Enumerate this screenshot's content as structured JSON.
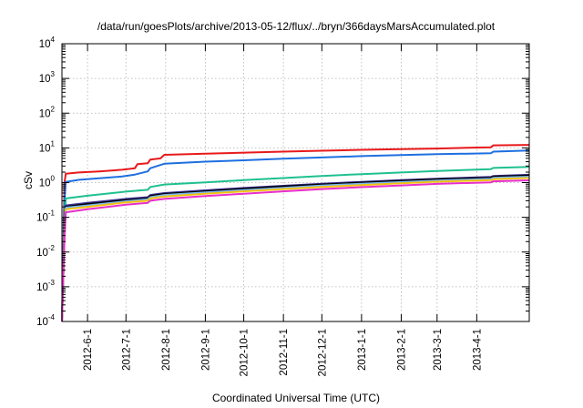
{
  "chart_data": {
    "type": "line",
    "title": "/data/run/goesPlots/archive/2013-05-12/flux/../bryn/366daysMarsAccumulated.plot",
    "xlabel": "Coordinated Universal Time (UTC)",
    "ylabel": "cSv",
    "x_range": [
      "2012-05-12",
      "2013-05-12"
    ],
    "ylim": [
      0.0001,
      10000
    ],
    "yscale": "log",
    "grid": true,
    "x_ticks": [
      "2012-06-01",
      "2012-07-01",
      "2012-08-01",
      "2012-09-01",
      "2012-10-01",
      "2012-11-01",
      "2012-12-01",
      "2013-01-01",
      "2013-02-01",
      "2013-03-01",
      "2013-04-01"
    ],
    "x_tick_labels": [
      "2012-6-1",
      "2012-7-1",
      "2012-8-1",
      "2012-9-1",
      "2012-10-1",
      "2012-11-1",
      "2012-12-1",
      "2013-1-1",
      "2013-2-1",
      "2013-3-1",
      "2013-4-1"
    ],
    "y_ticks": [
      {
        "value": 0.0001,
        "base": "10",
        "exp": "-4"
      },
      {
        "value": 0.001,
        "base": "10",
        "exp": "-3"
      },
      {
        "value": 0.01,
        "base": "10",
        "exp": "-2"
      },
      {
        "value": 0.1,
        "base": "10",
        "exp": "-1"
      },
      {
        "value": 1,
        "base": "10",
        "exp": "0"
      },
      {
        "value": 10,
        "base": "10",
        "exp": "1"
      },
      {
        "value": 100,
        "base": "10",
        "exp": "2"
      },
      {
        "value": 1000,
        "base": "10",
        "exp": "3"
      },
      {
        "value": 10000,
        "base": "10",
        "exp": "4"
      }
    ],
    "series": [
      {
        "color": "#e8191b",
        "points": [
          [
            "2012-05-12",
            0.0001
          ],
          [
            "2012-05-13",
            0.01
          ],
          [
            "2012-05-14",
            1.0
          ],
          [
            "2012-05-15",
            1.8
          ],
          [
            "2012-05-25",
            1.95
          ],
          [
            "2012-06-10",
            2.1
          ],
          [
            "2012-06-28",
            2.35
          ],
          [
            "2012-07-08",
            2.6
          ],
          [
            "2012-07-10",
            3.4
          ],
          [
            "2012-07-18",
            3.6
          ],
          [
            "2012-07-20",
            4.6
          ],
          [
            "2012-07-28",
            5.0
          ],
          [
            "2012-07-31",
            6.3
          ],
          [
            "2012-09-01",
            6.8
          ],
          [
            "2012-10-01",
            7.3
          ],
          [
            "2012-11-01",
            7.8
          ],
          [
            "2012-12-01",
            8.3
          ],
          [
            "2013-01-01",
            8.8
          ],
          [
            "2013-02-01",
            9.2
          ],
          [
            "2013-03-01",
            9.6
          ],
          [
            "2013-04-12",
            10.4
          ],
          [
            "2013-04-14",
            11.8
          ],
          [
            "2013-05-12",
            12.2
          ]
        ]
      },
      {
        "color": "#1e6fe0",
        "points": [
          [
            "2012-05-12",
            0.0001
          ],
          [
            "2012-05-14",
            0.3
          ],
          [
            "2012-05-15",
            1.05
          ],
          [
            "2012-05-25",
            1.2
          ],
          [
            "2012-06-28",
            1.5
          ],
          [
            "2012-07-08",
            1.7
          ],
          [
            "2012-07-18",
            2.1
          ],
          [
            "2012-07-20",
            2.6
          ],
          [
            "2012-07-31",
            3.5
          ],
          [
            "2012-09-01",
            4.0
          ],
          [
            "2012-10-01",
            4.4
          ],
          [
            "2012-11-01",
            4.9
          ],
          [
            "2012-12-01",
            5.3
          ],
          [
            "2013-01-01",
            5.8
          ],
          [
            "2013-02-01",
            6.2
          ],
          [
            "2013-03-01",
            6.6
          ],
          [
            "2013-04-12",
            7.0
          ],
          [
            "2013-04-14",
            7.8
          ],
          [
            "2013-05-12",
            8.4
          ]
        ]
      },
      {
        "color": "#1fc08f",
        "points": [
          [
            "2012-05-12",
            0.0001
          ],
          [
            "2012-05-14",
            0.05
          ],
          [
            "2012-05-15",
            0.35
          ],
          [
            "2012-06-01",
            0.42
          ],
          [
            "2012-07-01",
            0.55
          ],
          [
            "2012-07-18",
            0.62
          ],
          [
            "2012-07-20",
            0.75
          ],
          [
            "2012-07-31",
            0.88
          ],
          [
            "2012-09-01",
            1.02
          ],
          [
            "2012-10-01",
            1.18
          ],
          [
            "2012-11-01",
            1.35
          ],
          [
            "2012-12-01",
            1.55
          ],
          [
            "2013-01-01",
            1.75
          ],
          [
            "2013-02-01",
            1.95
          ],
          [
            "2013-03-01",
            2.15
          ],
          [
            "2013-04-12",
            2.45
          ],
          [
            "2013-04-14",
            2.65
          ],
          [
            "2013-05-12",
            2.85
          ]
        ]
      },
      {
        "color": "#3b2f8f",
        "points": [
          [
            "2012-05-12",
            0.0001
          ],
          [
            "2012-05-14",
            0.04
          ],
          [
            "2012-05-15",
            0.22
          ],
          [
            "2012-06-01",
            0.26
          ],
          [
            "2012-07-01",
            0.34
          ],
          [
            "2012-07-18",
            0.38
          ],
          [
            "2012-07-20",
            0.44
          ],
          [
            "2012-07-31",
            0.5
          ],
          [
            "2012-09-01",
            0.6
          ],
          [
            "2012-10-01",
            0.7
          ],
          [
            "2012-11-01",
            0.81
          ],
          [
            "2012-12-01",
            0.93
          ],
          [
            "2013-01-01",
            1.05
          ],
          [
            "2013-02-01",
            1.18
          ],
          [
            "2013-03-01",
            1.3
          ],
          [
            "2013-04-12",
            1.45
          ],
          [
            "2013-04-14",
            1.55
          ],
          [
            "2013-05-12",
            1.68
          ]
        ]
      },
      {
        "color": "#000000",
        "points": [
          [
            "2012-05-12",
            0.0001
          ],
          [
            "2012-05-14",
            0.035
          ],
          [
            "2012-05-15",
            0.2
          ],
          [
            "2012-06-01",
            0.24
          ],
          [
            "2012-07-01",
            0.31
          ],
          [
            "2012-07-18",
            0.35
          ],
          [
            "2012-07-20",
            0.41
          ],
          [
            "2012-07-31",
            0.47
          ],
          [
            "2012-09-01",
            0.56
          ],
          [
            "2012-10-01",
            0.66
          ],
          [
            "2012-11-01",
            0.77
          ],
          [
            "2012-12-01",
            0.88
          ],
          [
            "2013-01-01",
            1.0
          ],
          [
            "2013-02-01",
            1.12
          ],
          [
            "2013-03-01",
            1.24
          ],
          [
            "2013-04-12",
            1.38
          ],
          [
            "2013-04-14",
            1.48
          ],
          [
            "2013-05-12",
            1.6
          ]
        ]
      },
      {
        "color": "#7ab8f5",
        "points": [
          [
            "2012-05-12",
            0.0001
          ],
          [
            "2012-05-14",
            0.03
          ],
          [
            "2012-05-15",
            0.19
          ],
          [
            "2012-06-01",
            0.22
          ],
          [
            "2012-07-01",
            0.29
          ],
          [
            "2012-07-18",
            0.33
          ],
          [
            "2012-07-20",
            0.38
          ],
          [
            "2012-07-31",
            0.44
          ],
          [
            "2012-09-01",
            0.52
          ],
          [
            "2012-10-01",
            0.61
          ],
          [
            "2012-11-01",
            0.71
          ],
          [
            "2012-12-01",
            0.82
          ],
          [
            "2013-01-01",
            0.93
          ],
          [
            "2013-02-01",
            1.04
          ],
          [
            "2013-03-01",
            1.15
          ],
          [
            "2013-04-12",
            1.28
          ],
          [
            "2013-04-14",
            1.37
          ],
          [
            "2013-05-12",
            1.48
          ]
        ]
      },
      {
        "color": "#f2c20f",
        "points": [
          [
            "2012-05-12",
            0.0001
          ],
          [
            "2012-05-14",
            0.03
          ],
          [
            "2012-05-15",
            0.17
          ],
          [
            "2012-06-01",
            0.2
          ],
          [
            "2012-07-01",
            0.27
          ],
          [
            "2012-07-18",
            0.3
          ],
          [
            "2012-07-20",
            0.35
          ],
          [
            "2012-07-31",
            0.4
          ],
          [
            "2012-09-01",
            0.48
          ],
          [
            "2012-10-01",
            0.56
          ],
          [
            "2012-11-01",
            0.65
          ],
          [
            "2012-12-01",
            0.75
          ],
          [
            "2013-01-01",
            0.85
          ],
          [
            "2013-02-01",
            0.96
          ],
          [
            "2013-03-01",
            1.06
          ],
          [
            "2013-04-12",
            1.18
          ],
          [
            "2013-04-14",
            1.26
          ],
          [
            "2013-05-12",
            1.36
          ]
        ]
      },
      {
        "color": "#e62ecb",
        "points": [
          [
            "2012-05-12",
            0.0001
          ],
          [
            "2012-05-14",
            0.025
          ],
          [
            "2012-05-15",
            0.14
          ],
          [
            "2012-06-01",
            0.17
          ],
          [
            "2012-07-01",
            0.23
          ],
          [
            "2012-07-18",
            0.26
          ],
          [
            "2012-07-20",
            0.3
          ],
          [
            "2012-07-31",
            0.34
          ],
          [
            "2012-09-01",
            0.41
          ],
          [
            "2012-10-01",
            0.48
          ],
          [
            "2012-11-01",
            0.56
          ],
          [
            "2012-12-01",
            0.65
          ],
          [
            "2013-01-01",
            0.74
          ],
          [
            "2013-02-01",
            0.83
          ],
          [
            "2013-03-01",
            0.92
          ],
          [
            "2013-04-12",
            1.02
          ],
          [
            "2013-04-14",
            1.09
          ],
          [
            "2013-05-12",
            1.16
          ]
        ]
      }
    ]
  }
}
